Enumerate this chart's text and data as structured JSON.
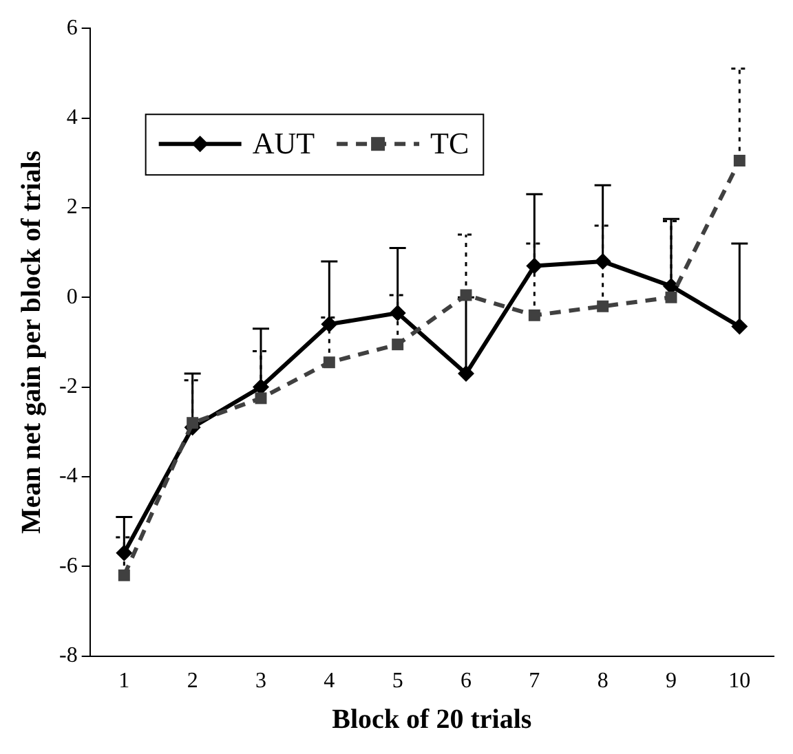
{
  "chart_data": {
    "type": "line",
    "xlabel": "Block of 20 trials",
    "ylabel": "Mean net gain per block of trials",
    "categories": [
      "1",
      "2",
      "3",
      "4",
      "5",
      "6",
      "7",
      "8",
      "9",
      "10"
    ],
    "series": [
      {
        "name": "AUT",
        "color": "#000000",
        "marker": "diamond",
        "line_style": "solid",
        "values": [
          -5.7,
          -2.9,
          -2.0,
          -0.6,
          -0.35,
          -1.7,
          0.7,
          0.8,
          0.25,
          -0.65
        ],
        "errors": [
          [
            -5.7,
            -4.9
          ],
          [
            -2.9,
            -1.7
          ],
          [
            -2.0,
            -0.7
          ],
          [
            -0.6,
            0.8
          ],
          [
            -0.35,
            1.1
          ],
          [
            -1.7,
            0.0
          ],
          [
            0.7,
            2.3
          ],
          [
            0.8,
            2.5
          ],
          [
            0.25,
            1.75
          ],
          [
            -0.65,
            1.2
          ]
        ]
      },
      {
        "name": "TC",
        "color": "#404040",
        "marker": "square",
        "line_style": "dashed",
        "values": [
          -6.2,
          -2.8,
          -2.25,
          -1.45,
          -1.05,
          0.05,
          -0.4,
          -0.2,
          0.0,
          3.05
        ],
        "errors": [
          [
            -6.2,
            -5.35
          ],
          [
            -2.8,
            -1.85
          ],
          [
            -2.25,
            -1.2
          ],
          [
            -1.45,
            -0.45
          ],
          [
            -1.05,
            0.05
          ],
          [
            0.05,
            1.4
          ],
          [
            -0.4,
            1.2
          ],
          [
            -0.2,
            1.6
          ],
          [
            0.0,
            1.7
          ],
          [
            3.05,
            5.1
          ]
        ]
      }
    ],
    "ylim": [
      -8,
      6
    ],
    "yticks": [
      -8,
      -6,
      -4,
      -2,
      0,
      2,
      4,
      6
    ],
    "grid": false,
    "legend": "top left"
  }
}
